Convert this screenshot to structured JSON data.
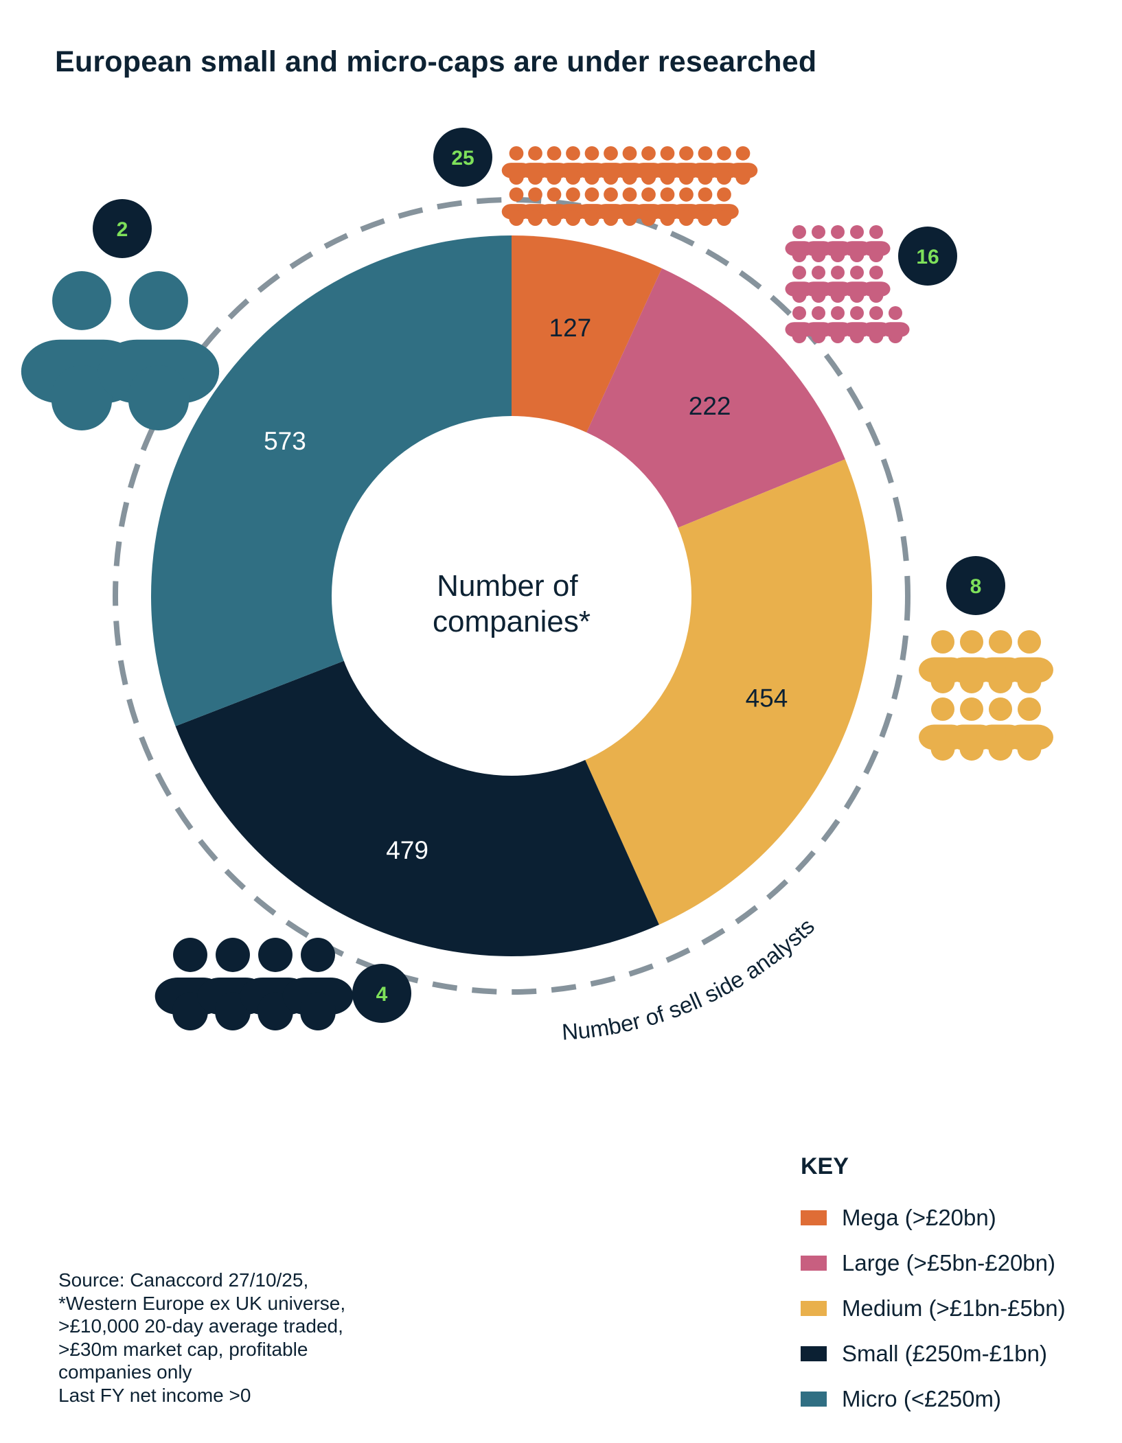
{
  "title": "European small and micro-caps are under researched",
  "chart_data": {
    "type": "pie",
    "variant": "donut",
    "center_label_lines": [
      "Number of",
      "companies*"
    ],
    "ring_label": "Number of sell side analysts",
    "categories": [
      "Mega (>£20bn)",
      "Large (>£5bn-£20bn)",
      "Medium (>£1bn-£5bn)",
      "Small (£250m-£1bn)",
      "Micro (<£250m)"
    ],
    "values": [
      127,
      222,
      454,
      479,
      573
    ],
    "analysts": [
      25,
      16,
      8,
      4,
      2
    ],
    "colors": [
      "#df6d36",
      "#c85f80",
      "#e9b04c",
      "#0b2033",
      "#306f83"
    ],
    "label_colors": [
      "#0b2033",
      "#0b2033",
      "#0b2033",
      "#ffffff",
      "#ffffff"
    ],
    "badge_text_color": "#7ee05a",
    "ring_color": "#86939c"
  },
  "key": {
    "title": "KEY",
    "items": [
      "Mega (>£20bn)",
      "Large (>£5bn-£20bn)",
      "Medium (>£1bn-£5bn)",
      "Small (£250m-£1bn)",
      "Micro (<£250m)"
    ]
  },
  "source_lines": [
    "Source: Canaccord 27/10/25,",
    "*Western Europe ex UK universe,",
    ">£10,000 20-day average traded,",
    ">£30m market cap, profitable",
    "companies only",
    "Last FY net income >0"
  ]
}
